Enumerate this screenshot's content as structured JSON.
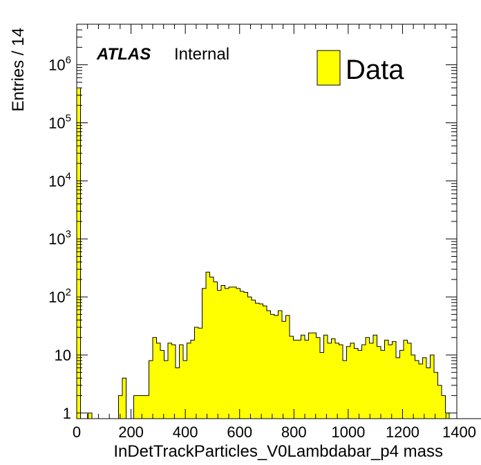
{
  "chart_data": {
    "type": "bar",
    "xlabel": "InDetTrackParticles_V0Lambdabar_p4 mass",
    "ylabel": "Entries / 14",
    "xlim": [
      0,
      1400
    ],
    "ylim": [
      0.8,
      5000000
    ],
    "log_y": true,
    "bin_width": 14,
    "legend": {
      "entry": "Data",
      "color": "#ffff00",
      "position": "top-right"
    },
    "atlas_label": {
      "bold": "ATLAS",
      "text": "Internal"
    },
    "x_ticks": [
      {
        "v": 0,
        "label": "0"
      },
      {
        "v": 200,
        "label": "200"
      },
      {
        "v": 400,
        "label": "400"
      },
      {
        "v": 600,
        "label": "600"
      },
      {
        "v": 800,
        "label": "800"
      },
      {
        "v": 1000,
        "label": "1000"
      },
      {
        "v": 1200,
        "label": "1200"
      },
      {
        "v": 1400,
        "label": "1400"
      }
    ],
    "y_ticks": [
      {
        "v": 1,
        "base": "1",
        "exp": ""
      },
      {
        "v": 10,
        "base": "10",
        "exp": ""
      },
      {
        "v": 100,
        "base": "10",
        "exp": "2"
      },
      {
        "v": 1000,
        "base": "10",
        "exp": "3"
      },
      {
        "v": 10000,
        "base": "10",
        "exp": "4"
      },
      {
        "v": 100000,
        "base": "10",
        "exp": "5"
      },
      {
        "v": 1000000,
        "base": "10",
        "exp": "6"
      }
    ],
    "values": [
      400000,
      0,
      0,
      1,
      0,
      0,
      0,
      0,
      0,
      0,
      0,
      2,
      4,
      0,
      0,
      2,
      2,
      2,
      2,
      8,
      20,
      16,
      12,
      8,
      16,
      15,
      6,
      15,
      8,
      16,
      18,
      30,
      29,
      140,
      268,
      220,
      182,
      130,
      158,
      140,
      148,
      148,
      140,
      125,
      120,
      100,
      88,
      78,
      76,
      70,
      58,
      50,
      48,
      58,
      38,
      48,
      21,
      18,
      18,
      22,
      18,
      24,
      24,
      20,
      11,
      22,
      16,
      19,
      16,
      15,
      8,
      14,
      16,
      13,
      12,
      15,
      20,
      16,
      22,
      14,
      12,
      18,
      15,
      17,
      9,
      12,
      18,
      16,
      10,
      8,
      7,
      9,
      6,
      10,
      5,
      3,
      2,
      1,
      0,
      0,
      0,
      0,
      0,
      0,
      0,
      0,
      0,
      0,
      0,
      0,
      0,
      0,
      0,
      0,
      0,
      0,
      0,
      0,
      0,
      0,
      0,
      0,
      0,
      0,
      0,
      0,
      0,
      0,
      0,
      1,
      0,
      0,
      0,
      0,
      0,
      0,
      0,
      0,
      0,
      0
    ]
  }
}
